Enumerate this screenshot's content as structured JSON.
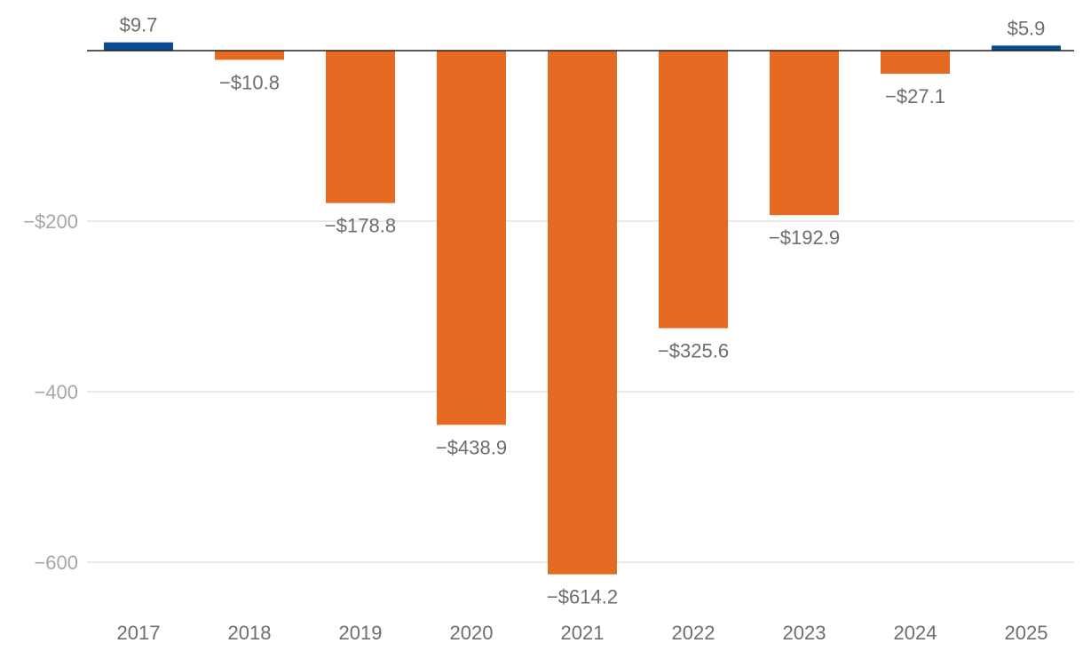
{
  "chart_data": {
    "type": "bar",
    "title": "",
    "xlabel": "",
    "ylabel": "",
    "categories": [
      "2017",
      "2018",
      "2019",
      "2020",
      "2021",
      "2022",
      "2023",
      "2024",
      "2025"
    ],
    "values": [
      9.7,
      -10.8,
      -178.8,
      -438.9,
      -614.2,
      -325.6,
      -192.9,
      -27.1,
      5.9
    ],
    "data_labels": [
      "$9.7",
      "−$10.8",
      "−$178.8",
      "−$438.9",
      "−$614.2",
      "−$325.6",
      "−$192.9",
      "−$27.1",
      "$5.9"
    ],
    "ylim": [
      -650,
      20
    ],
    "yticks": [
      -200,
      -400,
      -600
    ],
    "ytick_labels": [
      "−$200",
      "−400",
      "−600"
    ],
    "grid": true,
    "legend": "none",
    "colors": {
      "positive": "#0b4b93",
      "negative": "#e66a22"
    }
  }
}
